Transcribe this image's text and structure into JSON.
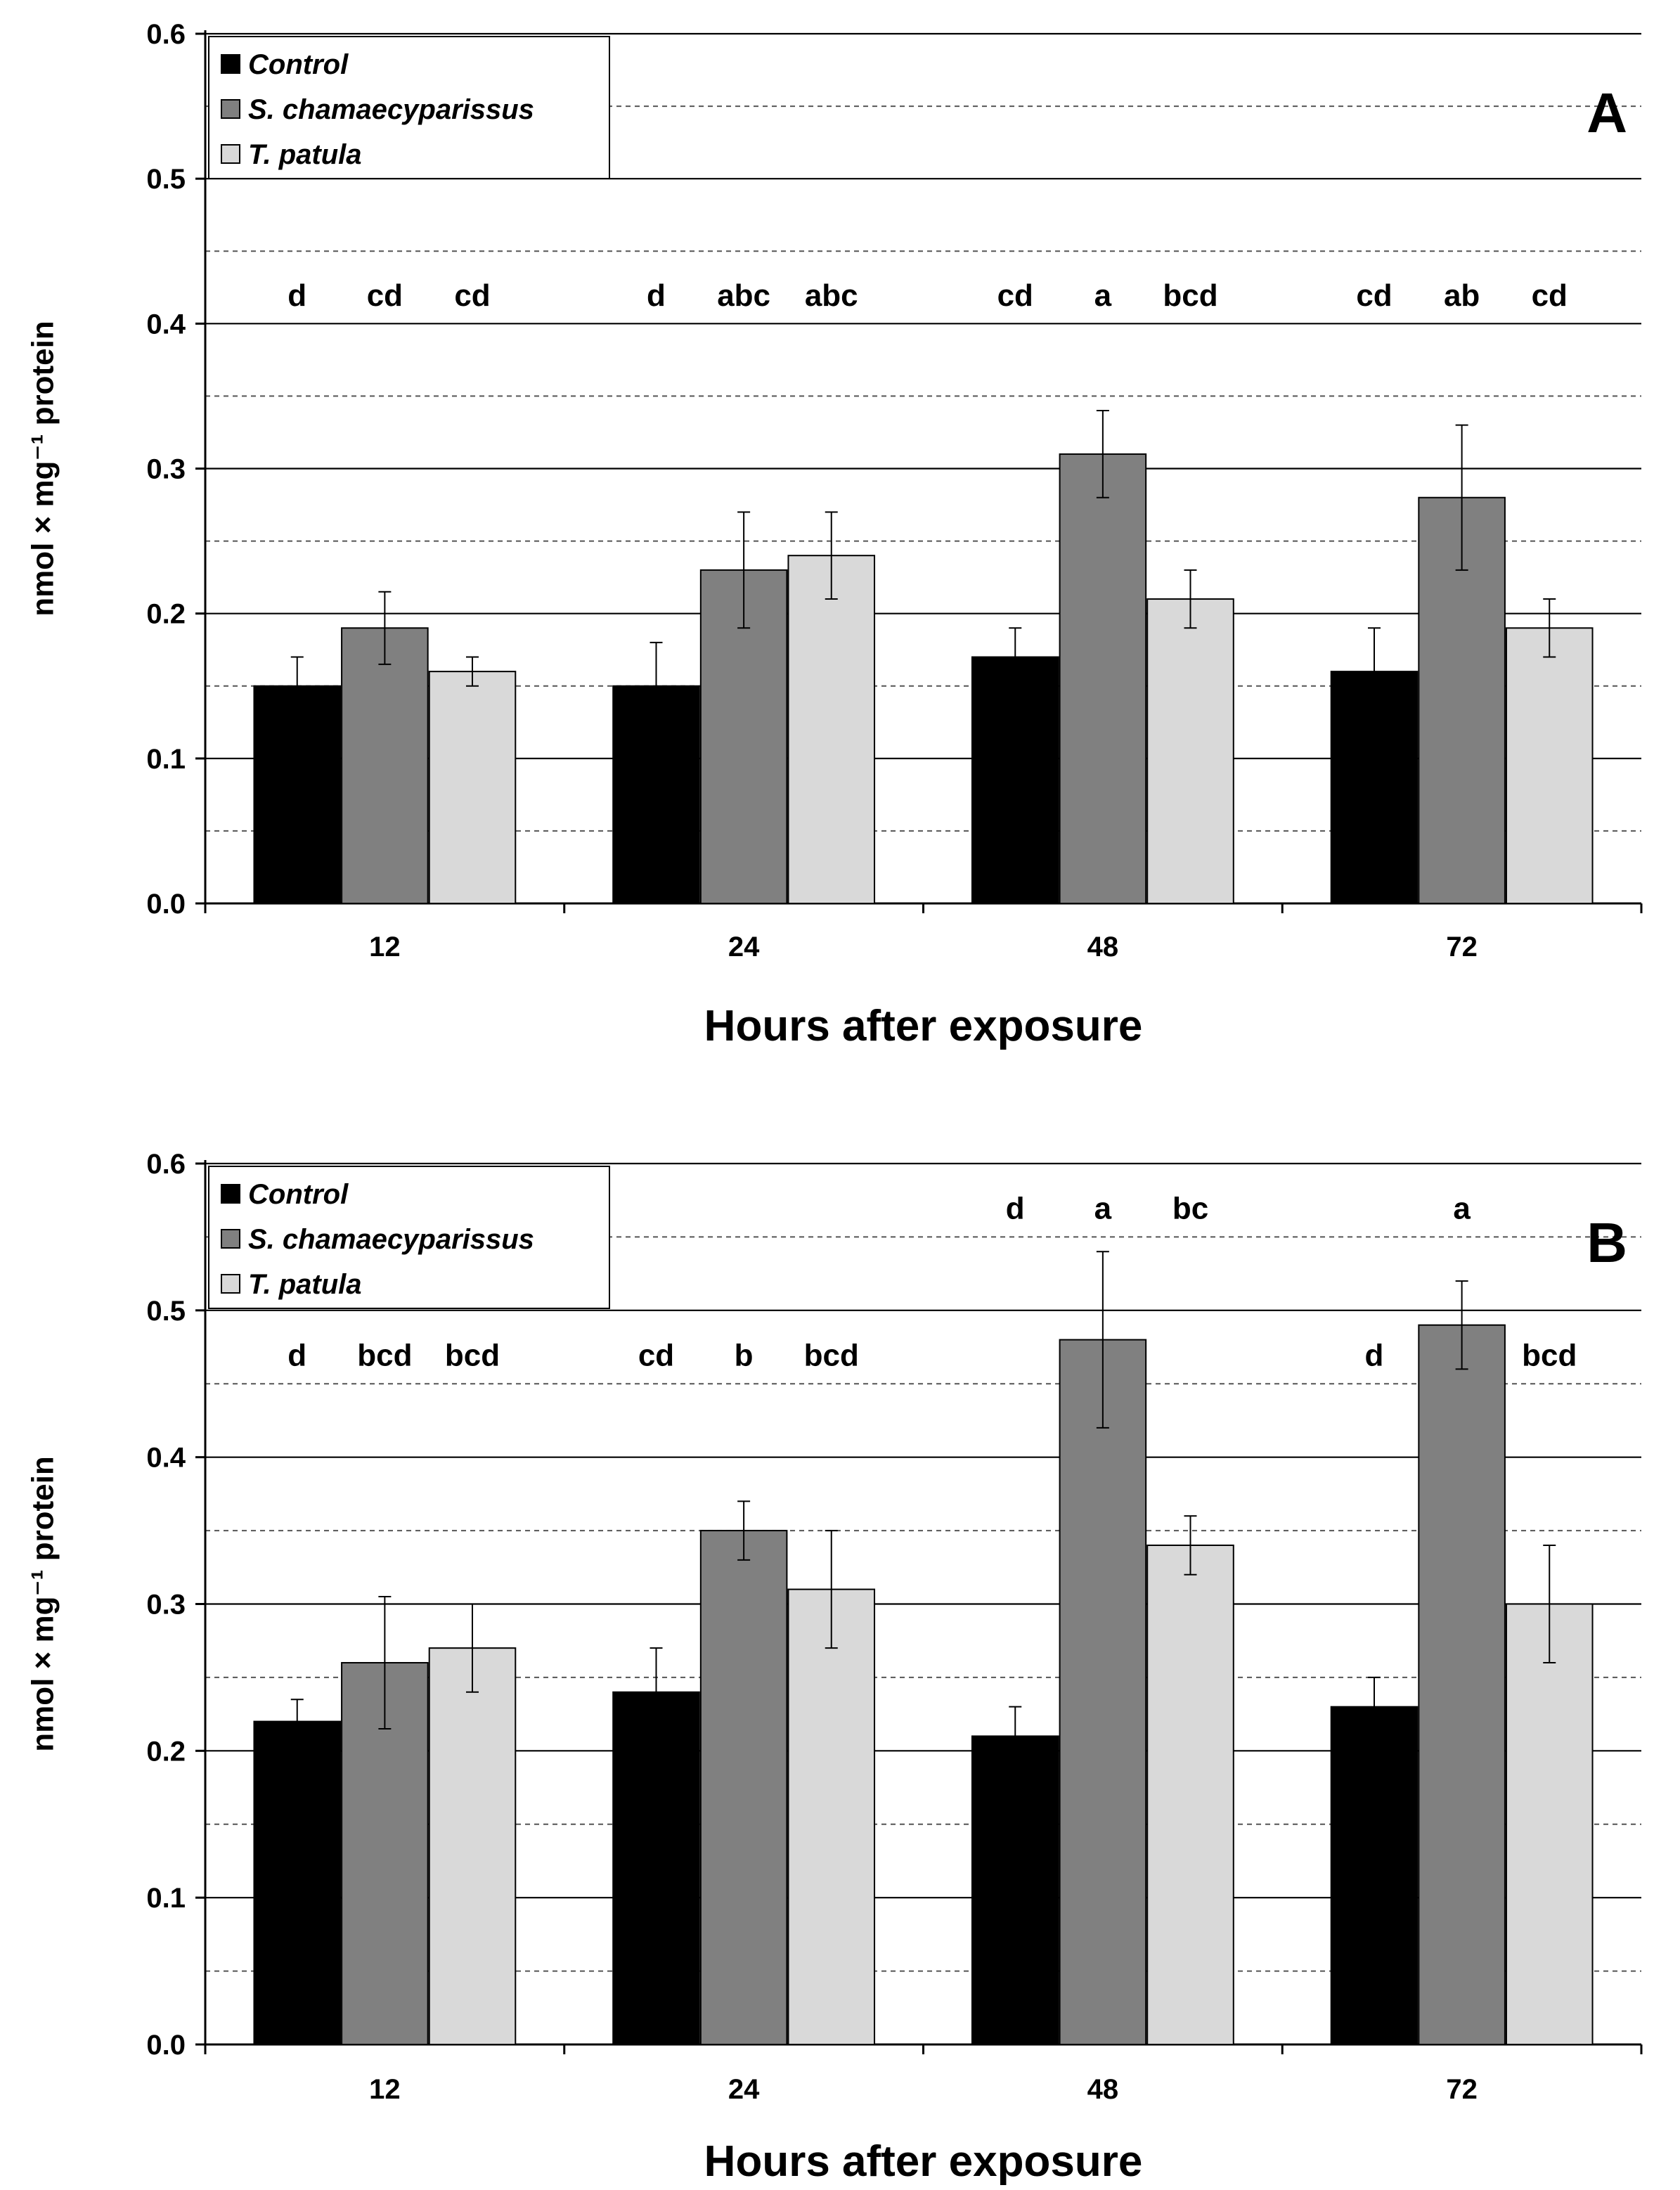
{
  "chart_data": [
    {
      "type": "bar",
      "panel_label": "A",
      "categories": [
        "12",
        "24",
        "48",
        "72"
      ],
      "series": [
        {
          "name": "Control",
          "color": "#000000",
          "values": [
            0.15,
            0.15,
            0.17,
            0.16
          ],
          "errors": [
            0.02,
            0.03,
            0.02,
            0.03
          ]
        },
        {
          "name": "S. chamaecyparissus",
          "color": "#808080",
          "values": [
            0.19,
            0.23,
            0.31,
            0.28
          ],
          "errors": [
            0.025,
            0.04,
            0.03,
            0.05
          ]
        },
        {
          "name": "T. patula",
          "color": "#d9d9d9",
          "values": [
            0.16,
            0.24,
            0.21,
            0.19
          ],
          "errors": [
            0.01,
            0.03,
            0.02,
            0.02
          ]
        }
      ],
      "letters": [
        [
          "d",
          "cd",
          "cd"
        ],
        [
          "d",
          "abc",
          "abc"
        ],
        [
          "cd",
          "a",
          "bcd"
        ],
        [
          "cd",
          "ab",
          "cd"
        ]
      ],
      "letter_y": [
        0.42,
        0.42,
        0.42,
        0.42
      ],
      "xlabel": "Hours after exposure",
      "ylabel": "nmol × mg⁻¹ protein",
      "ylim": [
        0,
        0.6
      ],
      "yticks": [
        "0.0",
        "0.1",
        "0.2",
        "0.3",
        "0.4",
        "0.5",
        "0.6"
      ],
      "grid": true
    },
    {
      "type": "bar",
      "panel_label": "B",
      "categories": [
        "12",
        "24",
        "48",
        "72"
      ],
      "series": [
        {
          "name": "Control",
          "color": "#000000",
          "values": [
            0.22,
            0.24,
            0.21,
            0.23
          ],
          "errors": [
            0.015,
            0.03,
            0.02,
            0.02
          ]
        },
        {
          "name": "S. chamaecyparissus",
          "color": "#808080",
          "values": [
            0.26,
            0.35,
            0.48,
            0.49
          ],
          "errors": [
            0.045,
            0.02,
            0.06,
            0.03
          ]
        },
        {
          "name": "T. patula",
          "color": "#d9d9d9",
          "values": [
            0.27,
            0.31,
            0.34,
            0.3
          ],
          "errors": [
            0.03,
            0.04,
            0.02,
            0.04
          ]
        }
      ],
      "letters": [
        [
          "d",
          "bcd",
          "bcd"
        ],
        [
          "cd",
          "b",
          "bcd"
        ],
        [
          "d",
          "a",
          "bc"
        ],
        [
          "d",
          "a",
          "bcd"
        ]
      ],
      "letter_y": [
        0.47,
        0.47,
        0.57,
        [
          0.47,
          0.57,
          0.47
        ]
      ],
      "xlabel": "Hours after exposure",
      "ylabel": "nmol × mg⁻¹ protein",
      "ylim": [
        0,
        0.6
      ],
      "yticks": [
        "0.0",
        "0.1",
        "0.2",
        "0.3",
        "0.4",
        "0.5",
        "0.6"
      ],
      "grid": true
    }
  ]
}
